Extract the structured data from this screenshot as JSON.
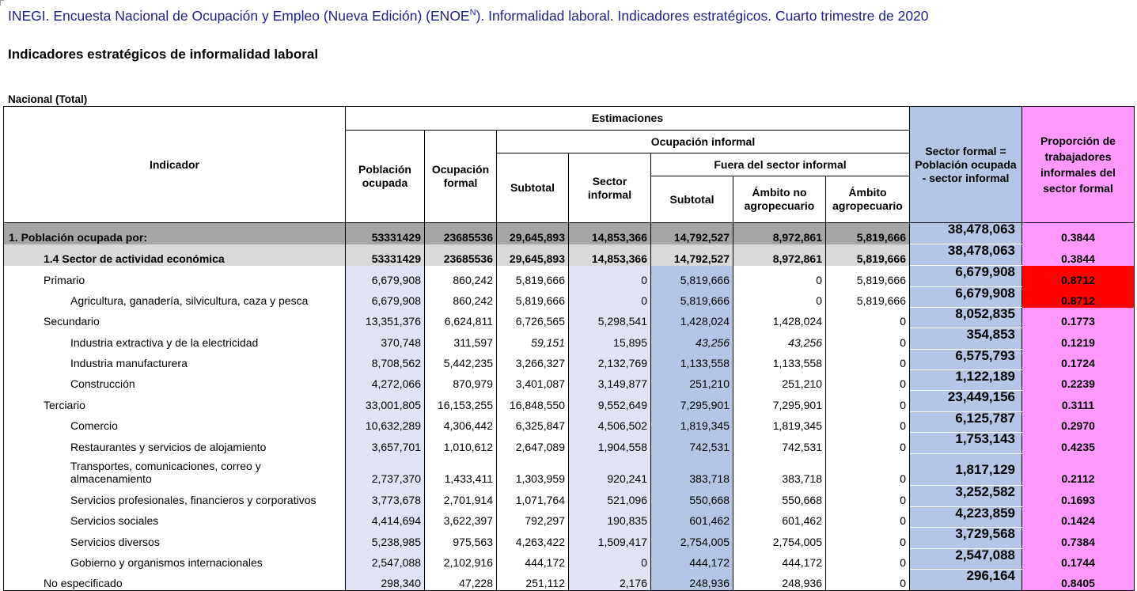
{
  "title_prefix": "INEGI. Encuesta Nacional de Ocupación y Empleo (Nueva Edición) (ENOE",
  "title_sup": "N",
  "title_suffix": "). Informalidad laboral. Indicadores estratégicos. Cuarto trimestre de 2020",
  "heading": "Indicadores estratégicos de informalidad laboral",
  "scope": "Nacional (Total)",
  "headers": {
    "indicador": "Indicador",
    "estimaciones": "Estimaciones",
    "poblacion_ocupada": "Población ocupada",
    "ocupacion_formal": "Ocupación formal",
    "ocupacion_informal": "Ocupación informal",
    "subtotal": "Subtotal",
    "sector_informal": "Sector informal",
    "fuera_sector": "Fuera del sector informal",
    "subtotal2": "Subtotal",
    "ambito_no_agro": "Ámbito no agropecuario",
    "ambito_agro": "Ámbito agropecuario",
    "sector_formal": "Sector formal = Población ocupada - sector informal",
    "proporcion": "Proporción de trabajadores informales del sector formal"
  },
  "rows": [
    {
      "label": "1. Población ocupada por:",
      "ocupada": "53331429",
      "formal": "23685536",
      "subtotal": "29,645,893",
      "sector_inf": "14,853,366",
      "fuera_subtotal": "14,792,527",
      "no_agro": "8,972,861",
      "agro": "5,819,666",
      "sector_formal": "38,478,063",
      "proporcion": "0.3844"
    },
    {
      "label": "1.4 Sector de actividad económica",
      "ocupada": "53331429",
      "formal": "23685536",
      "subtotal": "29,645,893",
      "sector_inf": "14,853,366",
      "fuera_subtotal": "14,792,527",
      "no_agro": "8,972,861",
      "agro": "5,819,666",
      "sector_formal": "38,478,063",
      "proporcion": "0.3844"
    },
    {
      "label": "Primario",
      "ocupada": "6,679,908",
      "formal": "860,242",
      "subtotal": "5,819,666",
      "sector_inf": "0",
      "fuera_subtotal": "5,819,666",
      "no_agro": "0",
      "agro": "5,819,666",
      "sector_formal": "6,679,908",
      "proporcion": "0.8712"
    },
    {
      "label": "Agricultura, ganadería, silvicultura, caza y pesca",
      "ocupada": "6,679,908",
      "formal": "860,242",
      "subtotal": "5,819,666",
      "sector_inf": "0",
      "fuera_subtotal": "5,819,666",
      "no_agro": "0",
      "agro": "5,819,666",
      "sector_formal": "6,679,908",
      "proporcion": "0.8712"
    },
    {
      "label": "Secundario",
      "ocupada": "13,351,376",
      "formal": "6,624,811",
      "subtotal": "6,726,565",
      "sector_inf": "5,298,541",
      "fuera_subtotal": "1,428,024",
      "no_agro": "1,428,024",
      "agro": "0",
      "sector_formal": "8,052,835",
      "proporcion": "0.1773"
    },
    {
      "label": "Industria extractiva y de la electricidad",
      "ocupada": "370,748",
      "formal": "311,597",
      "subtotal": "59,151",
      "sector_inf": "15,895",
      "fuera_subtotal": "43,256",
      "no_agro": "43,256",
      "agro": "0",
      "sector_formal": "354,853",
      "proporcion": "0.1219"
    },
    {
      "label": "Industria manufacturera",
      "ocupada": "8,708,562",
      "formal": "5,442,235",
      "subtotal": "3,266,327",
      "sector_inf": "2,132,769",
      "fuera_subtotal": "1,133,558",
      "no_agro": "1,133,558",
      "agro": "0",
      "sector_formal": "6,575,793",
      "proporcion": "0.1724"
    },
    {
      "label": "Construcción",
      "ocupada": "4,272,066",
      "formal": "870,979",
      "subtotal": "3,401,087",
      "sector_inf": "3,149,877",
      "fuera_subtotal": "251,210",
      "no_agro": "251,210",
      "agro": "0",
      "sector_formal": "1,122,189",
      "proporcion": "0.2239"
    },
    {
      "label": "Terciario",
      "ocupada": "33,001,805",
      "formal": "16,153,255",
      "subtotal": "16,848,550",
      "sector_inf": "9,552,649",
      "fuera_subtotal": "7,295,901",
      "no_agro": "7,295,901",
      "agro": "0",
      "sector_formal": "23,449,156",
      "proporcion": "0.3111"
    },
    {
      "label": "Comercio",
      "ocupada": "10,632,289",
      "formal": "4,306,442",
      "subtotal": "6,325,847",
      "sector_inf": "4,506,502",
      "fuera_subtotal": "1,819,345",
      "no_agro": "1,819,345",
      "agro": "0",
      "sector_formal": "6,125,787",
      "proporcion": "0.2970"
    },
    {
      "label": "Restaurantes y servicios de alojamiento",
      "ocupada": "3,657,701",
      "formal": "1,010,612",
      "subtotal": "2,647,089",
      "sector_inf": "1,904,558",
      "fuera_subtotal": "742,531",
      "no_agro": "742,531",
      "agro": "0",
      "sector_formal": "1,753,143",
      "proporcion": "0.4235"
    },
    {
      "label": "Transportes, comunicaciones, correo y almacenamiento",
      "ocupada": "2,737,370",
      "formal": "1,433,411",
      "subtotal": "1,303,959",
      "sector_inf": "920,241",
      "fuera_subtotal": "383,718",
      "no_agro": "383,718",
      "agro": "0",
      "sector_formal": "1,817,129",
      "proporcion": "0.2112"
    },
    {
      "label": "Servicios profesionales, financieros y corporativos",
      "ocupada": "3,773,678",
      "formal": "2,701,914",
      "subtotal": "1,071,764",
      "sector_inf": "521,096",
      "fuera_subtotal": "550,668",
      "no_agro": "550,668",
      "agro": "0",
      "sector_formal": "3,252,582",
      "proporcion": "0.1693"
    },
    {
      "label": "Servicios sociales",
      "ocupada": "4,414,694",
      "formal": "3,622,397",
      "subtotal": "792,297",
      "sector_inf": "190,835",
      "fuera_subtotal": "601,462",
      "no_agro": "601,462",
      "agro": "0",
      "sector_formal": "4,223,859",
      "proporcion": "0.1424"
    },
    {
      "label": "Servicios diversos",
      "ocupada": "5,238,985",
      "formal": "975,563",
      "subtotal": "4,263,422",
      "sector_inf": "1,509,417",
      "fuera_subtotal": "2,754,005",
      "no_agro": "2,754,005",
      "agro": "0",
      "sector_formal": "3,729,568",
      "proporcion": "0.7384"
    },
    {
      "label": "Gobierno y organismos internacionales",
      "ocupada": "2,547,088",
      "formal": "2,102,916",
      "subtotal": "444,172",
      "sector_inf": "0",
      "fuera_subtotal": "444,172",
      "no_agro": "444,172",
      "agro": "0",
      "sector_formal": "2,547,088",
      "proporcion": "0.1744"
    },
    {
      "label": "No especificado",
      "ocupada": "298,340",
      "formal": "47,228",
      "subtotal": "251,112",
      "sector_inf": "2,176",
      "fuera_subtotal": "248,936",
      "no_agro": "248,936",
      "agro": "0",
      "sector_formal": "296,164",
      "proporcion": "0.8405"
    }
  ],
  "colors": {
    "title_text": "#1f1f8c",
    "lavender": "#dfe3f3",
    "blue": "#b4c6e7",
    "pink": "#ff99ff",
    "highlight_red": "#ff0000",
    "grey_total": "#a6a6a6",
    "grey_subtotal": "#d9d9d9"
  }
}
